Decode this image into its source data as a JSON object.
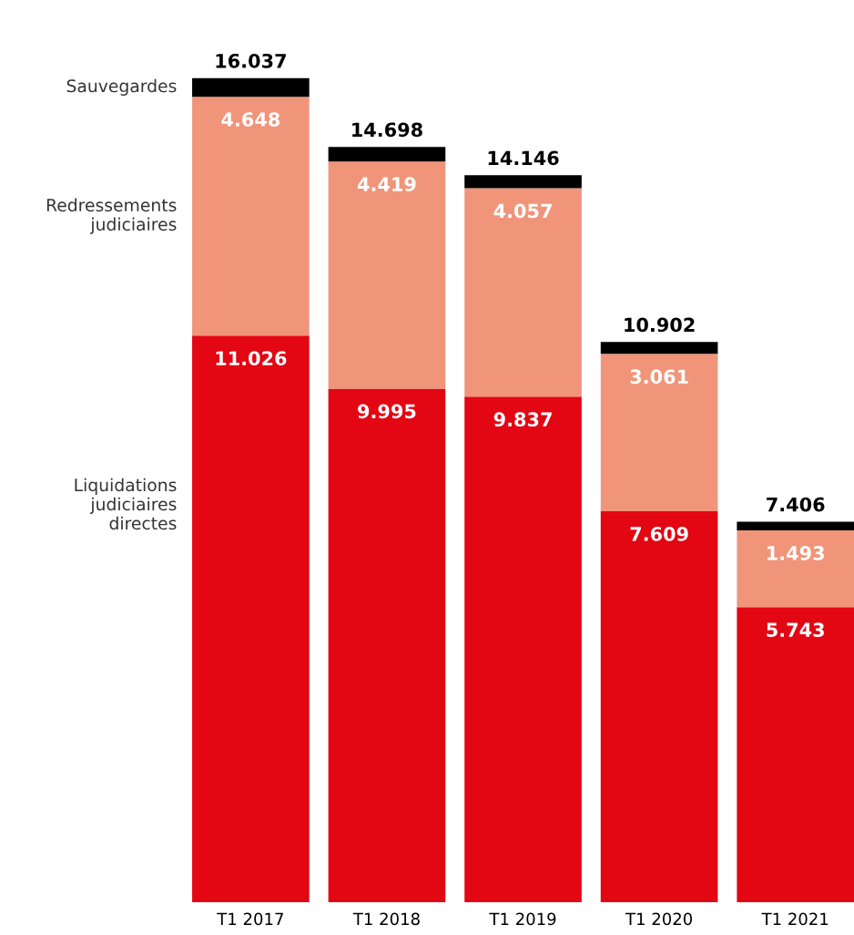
{
  "chart_data": {
    "type": "bar",
    "stacked": true,
    "categories": [
      "T1 2017",
      "T1 2018",
      "T1 2019",
      "T1 2020",
      "T1 2021"
    ],
    "series": [
      {
        "name": "Liquidations\njudiciaires\ndirectes",
        "color": "#e30613",
        "values": [
          11026,
          9995,
          9837,
          7609,
          5743
        ],
        "value_labels": [
          "11.026",
          "9.995",
          "9.837",
          "7.609",
          "5.743"
        ]
      },
      {
        "name": "Redressements\njudiciaires",
        "color": "#f0957a",
        "values": [
          4648,
          4419,
          4057,
          3061,
          1493
        ],
        "value_labels": [
          "4.648",
          "4.419",
          "4.057",
          "3.061",
          "1.493"
        ]
      },
      {
        "name": "Sauvegardes",
        "color": "#000000",
        "values": [
          363,
          284,
          252,
          232,
          170
        ]
      }
    ],
    "totals": [
      "16.037",
      "14.698",
      "14.146",
      "10.902",
      "7.406"
    ]
  }
}
